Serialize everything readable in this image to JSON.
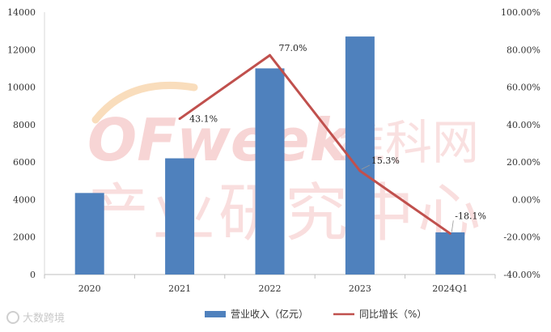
{
  "chart_data": {
    "type": "bar",
    "categories": [
      "2020",
      "2021",
      "2022",
      "2023",
      "2024Q1"
    ],
    "series": [
      {
        "name": "营业收入（亿元）",
        "type": "bar",
        "axis": "left",
        "values": [
          4350,
          6200,
          11000,
          12700,
          2250
        ],
        "color": "#4f81bd"
      },
      {
        "name": "同比增长（%）",
        "type": "line",
        "axis": "right",
        "values": [
          null,
          43.1,
          77.0,
          15.3,
          -18.1
        ],
        "labels": [
          "",
          "43.1%",
          "77.0%",
          "15.3%",
          "-18.1%"
        ],
        "color": "#c0504d"
      }
    ],
    "y_left": {
      "min": 0,
      "max": 14000,
      "ticks": [
        "0",
        "2000",
        "4000",
        "6000",
        "8000",
        "10000",
        "12000",
        "14000"
      ]
    },
    "y_right": {
      "min": -40,
      "max": 100,
      "ticks": [
        "-40.00%",
        "-20.00%",
        "0.00%",
        "20.00%",
        "40.00%",
        "60.00%",
        "80.00%",
        "100.00%"
      ]
    },
    "grid": false,
    "legend_position": "bottom"
  },
  "watermark": {
    "brand": "OFweek",
    "brand_cn": "维科网",
    "subtitle": "产业研究中心",
    "corner": "大数跨境"
  }
}
